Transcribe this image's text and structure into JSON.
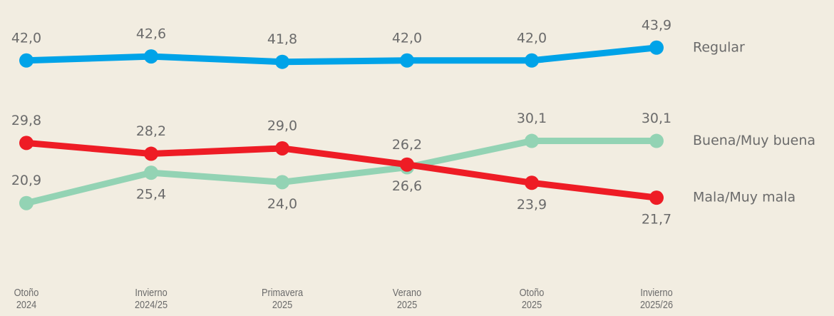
{
  "chart_data": {
    "type": "line",
    "categories": [
      "Otoño\n2024",
      "Invierno\n2024/25",
      "Primavera\n2025",
      "Verano\n2025",
      "Otoño\n2025",
      "Invierno\n2025/26"
    ],
    "ylim": [
      10,
      50
    ],
    "series": [
      {
        "name": "Regular",
        "color": "#00a3e8",
        "values": [
          42.0,
          42.6,
          41.8,
          42.0,
          42.0,
          43.9
        ],
        "value_labels": [
          "42,0",
          "42,6",
          "41,8",
          "42,0",
          "42,0",
          "43,9"
        ]
      },
      {
        "name": "Buena/Muy buena",
        "color": "#93d3b4",
        "values": [
          20.9,
          25.4,
          24.0,
          26.2,
          30.1,
          30.1
        ],
        "value_labels": [
          "20,9",
          "25,4",
          "24,0",
          "26,2",
          "30,1",
          "30,1"
        ]
      },
      {
        "name": "Mala/Muy mala",
        "color": "#ee1c25",
        "values": [
          29.8,
          28.2,
          29.0,
          26.6,
          23.9,
          21.7
        ],
        "value_labels": [
          "29,8",
          "28,2",
          "29,0",
          "26,6",
          "23,9",
          "21,7"
        ]
      }
    ]
  }
}
